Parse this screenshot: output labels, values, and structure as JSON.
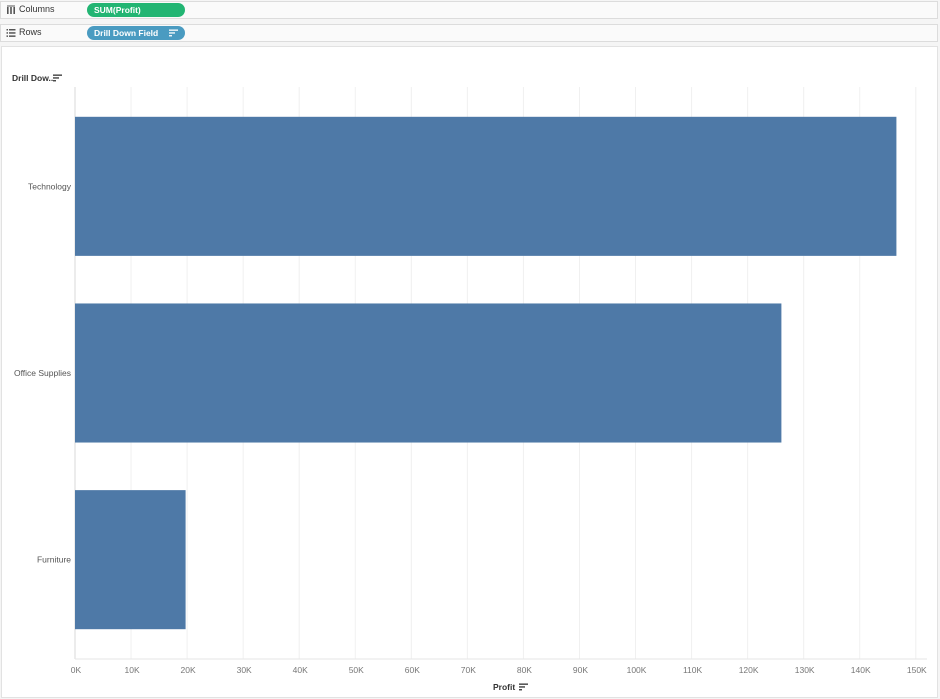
{
  "shelves": {
    "columns": {
      "label": "Columns",
      "pill": "SUM(Profit)"
    },
    "rows": {
      "label": "Rows",
      "pill": "Drill Down Field"
    }
  },
  "view": {
    "row_header": "Drill Dow.."
  },
  "colors": {
    "bar": "#4e79a7",
    "measure_pill": "#22b573",
    "dimension_pill": "#4a9bc1"
  },
  "chart_data": {
    "type": "bar",
    "orientation": "horizontal",
    "categories": [
      "Technology",
      "Office Supplies",
      "Furniture"
    ],
    "values": [
      146543,
      126024,
      19730
    ],
    "xlabel": "Profit",
    "xlim": [
      0,
      152000
    ],
    "xticks": [
      0,
      10000,
      20000,
      30000,
      40000,
      50000,
      60000,
      70000,
      80000,
      90000,
      100000,
      110000,
      120000,
      130000,
      140000,
      150000
    ],
    "xtick_labels": [
      "0K",
      "10K",
      "20K",
      "30K",
      "40K",
      "50K",
      "60K",
      "70K",
      "80K",
      "90K",
      "100K",
      "110K",
      "120K",
      "130K",
      "140K",
      "150K"
    ],
    "grid": true
  }
}
